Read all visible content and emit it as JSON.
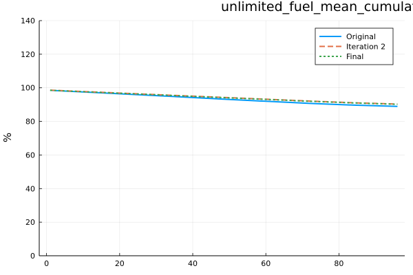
{
  "chart_data": {
    "type": "line",
    "title": "unlimited_fuel_mean_cumulative_survival_by_duration",
    "xlabel": "",
    "ylabel": "%",
    "xlim": [
      -2,
      98
    ],
    "ylim": [
      0,
      140
    ],
    "x_ticks": [
      0,
      20,
      40,
      60,
      80
    ],
    "y_ticks": [
      0,
      20,
      40,
      60,
      80,
      100,
      120,
      140
    ],
    "grid": true,
    "legend_position": "top-right",
    "x": [
      1,
      12,
      24,
      36,
      48,
      60,
      72,
      84,
      96
    ],
    "series": [
      {
        "name": "Original",
        "color": "#009AF9",
        "dash": "solid",
        "values": [
          98.5,
          97.3,
          96.0,
          94.7,
          93.3,
          92.0,
          90.7,
          89.7,
          88.9
        ]
      },
      {
        "name": "Iteration 2",
        "color": "#E26F46",
        "dash": "dash",
        "values": [
          98.6,
          97.6,
          96.5,
          95.4,
          94.3,
          93.2,
          92.1,
          91.1,
          90.3
        ]
      },
      {
        "name": "Final",
        "color": "#3DA44D",
        "dash": "dot",
        "values": [
          98.5,
          97.5,
          96.4,
          95.3,
          94.2,
          93.1,
          92.0,
          91.0,
          90.2
        ]
      }
    ]
  }
}
